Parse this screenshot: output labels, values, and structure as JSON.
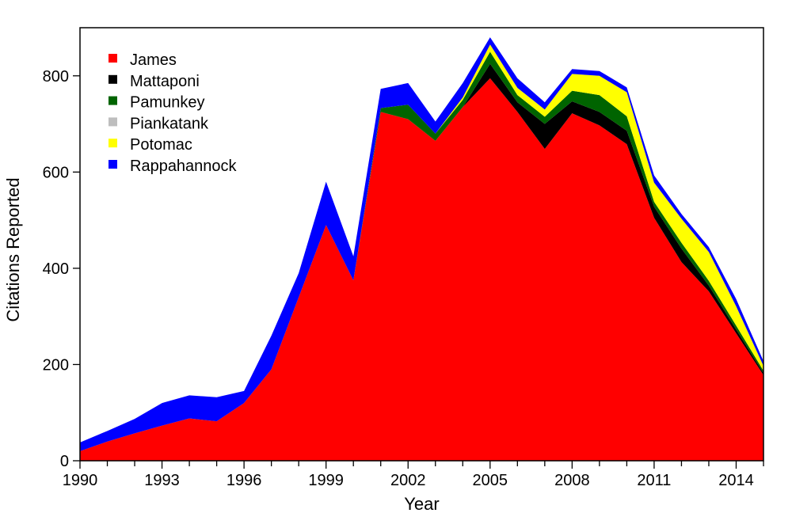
{
  "chart_data": {
    "type": "area",
    "stacked": true,
    "xlabel": "Year",
    "ylabel": "Citations Reported",
    "xlim": [
      1990,
      2015
    ],
    "ylim": [
      0,
      900
    ],
    "x_ticks": [
      1990,
      1993,
      1996,
      1999,
      2002,
      2005,
      2008,
      2011,
      2014
    ],
    "y_ticks": [
      0,
      200,
      400,
      600,
      800
    ],
    "legend_position": "top-left",
    "grid": false,
    "x": [
      1990,
      1991,
      1992,
      1993,
      1994,
      1995,
      1996,
      1997,
      1998,
      1999,
      2000,
      2001,
      2002,
      2003,
      2004,
      2005,
      2006,
      2007,
      2008,
      2009,
      2010,
      2011,
      2012,
      2013,
      2014,
      2015
    ],
    "series": [
      {
        "name": "James",
        "color": "#ff0000",
        "values": [
          20,
          40,
          57,
          73,
          88,
          82,
          120,
          190,
          340,
          490,
          375,
          725,
          710,
          665,
          735,
          795,
          725,
          648,
          722,
          697,
          658,
          505,
          413,
          352,
          265,
          178
        ]
      },
      {
        "name": "Mattaponi",
        "color": "#000000",
        "values": [
          0,
          0,
          0,
          0,
          0,
          0,
          0,
          0,
          0,
          0,
          0,
          0,
          0,
          0,
          0,
          30,
          20,
          52,
          25,
          28,
          28,
          23,
          28,
          12,
          8,
          4
        ]
      },
      {
        "name": "Pamunkey",
        "color": "#006400",
        "values": [
          0,
          0,
          0,
          0,
          0,
          0,
          0,
          0,
          0,
          0,
          0,
          8,
          30,
          15,
          15,
          25,
          15,
          15,
          22,
          35,
          30,
          10,
          12,
          10,
          8,
          5
        ]
      },
      {
        "name": "Piankatank",
        "color": "#bebebe",
        "values": [
          0,
          0,
          0,
          0,
          0,
          0,
          0,
          0,
          0,
          0,
          0,
          0,
          0,
          0,
          0,
          0,
          0,
          0,
          0,
          0,
          0,
          0,
          0,
          0,
          0,
          0
        ]
      },
      {
        "name": "Potomac",
        "color": "#ffff00",
        "values": [
          0,
          0,
          0,
          0,
          0,
          0,
          0,
          0,
          0,
          0,
          0,
          0,
          0,
          0,
          5,
          15,
          15,
          15,
          35,
          40,
          50,
          40,
          50,
          60,
          40,
          10
        ]
      },
      {
        "name": "Rappahannock",
        "color": "#0000ff",
        "values": [
          18,
          22,
          30,
          47,
          48,
          50,
          25,
          70,
          50,
          90,
          50,
          40,
          45,
          25,
          30,
          15,
          20,
          15,
          10,
          10,
          10,
          15,
          10,
          10,
          15,
          10
        ]
      }
    ]
  }
}
